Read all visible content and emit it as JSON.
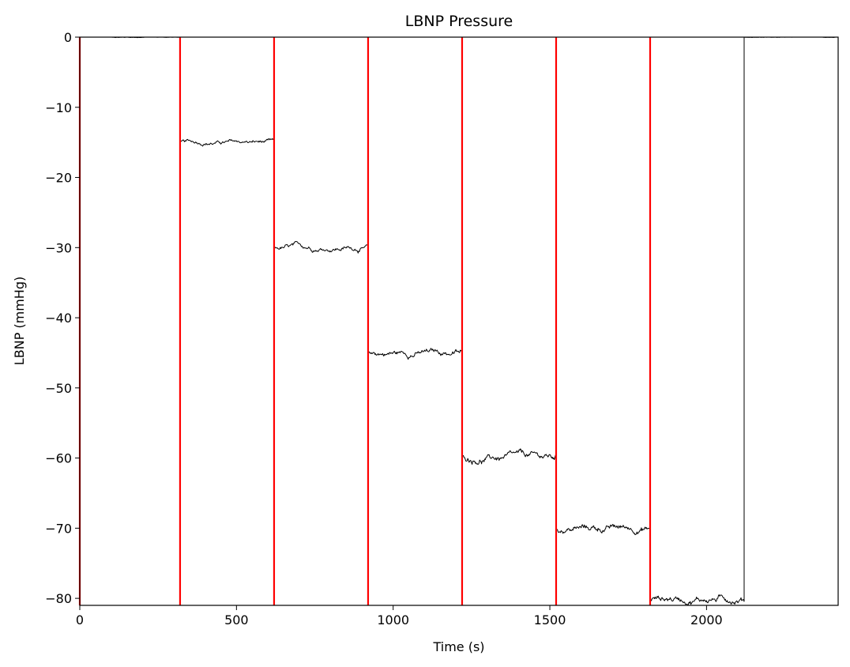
{
  "chart_data": {
    "type": "line",
    "title": "LBNP Pressure",
    "xlabel": "Time (s)",
    "ylabel": "LBNP (mmHg)",
    "xlim": [
      0,
      2420
    ],
    "ylim": [
      -81,
      0
    ],
    "xticks": [
      0,
      500,
      1000,
      1500,
      2000
    ],
    "yticks": [
      0,
      -10,
      -20,
      -30,
      -40,
      -50,
      -60,
      -70,
      -80
    ],
    "xtick_labels": [
      "0",
      "500",
      "1000",
      "1500",
      "2000"
    ],
    "ytick_labels": [
      "0",
      "−10",
      "−20",
      "−30",
      "−40",
      "−50",
      "−60",
      "−70",
      "−80"
    ],
    "grid": false,
    "series": [
      {
        "color": "#000000",
        "segments": [
          {
            "x": [
              0,
              320
            ],
            "y": 0
          },
          {
            "x": [
              320,
              620
            ],
            "y": -15
          },
          {
            "x": [
              620,
              920
            ],
            "y": -30
          },
          {
            "x": [
              920,
              1220
            ],
            "y": -45
          },
          {
            "x": [
              1220,
              1520
            ],
            "y": -60
          },
          {
            "x": [
              1520,
              1820
            ],
            "y": -70
          },
          {
            "x": [
              1820,
              2120
            ],
            "y": -80
          },
          {
            "x": [
              2120,
              2420
            ],
            "y": 0
          }
        ]
      }
    ],
    "vertical_lines": {
      "color": "#ff0000",
      "x": [
        0,
        320,
        620,
        920,
        1220,
        1520,
        1820
      ]
    }
  }
}
